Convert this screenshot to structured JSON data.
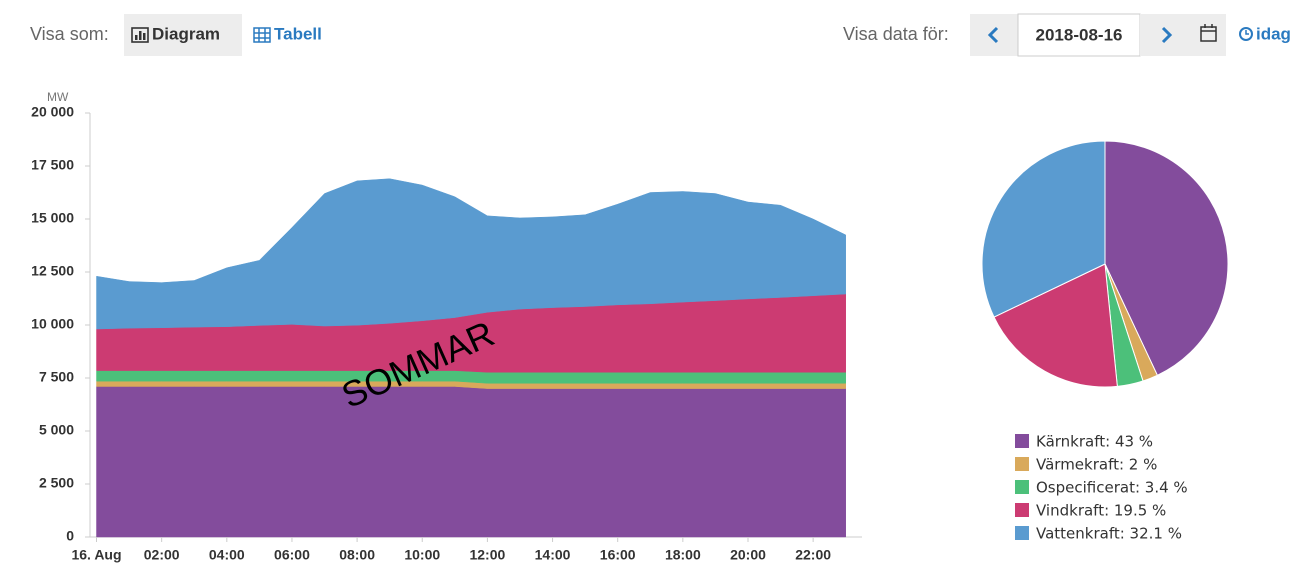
{
  "toolbar": {
    "show_as": "Visa som:",
    "diagram": "Diagram",
    "table": "Tabell",
    "show_data_for": "Visa data för:",
    "date": "2018-08-16",
    "today": "idag"
  },
  "chart_data": [
    {
      "type": "area",
      "stacked": true,
      "unit": "MW",
      "annotation": "SOMMAR",
      "x": [
        0,
        1,
        2,
        3,
        4,
        5,
        6,
        7,
        8,
        9,
        10,
        11,
        12,
        13,
        14,
        15,
        16,
        17,
        18,
        19,
        20,
        21,
        22,
        23
      ],
      "xlim": [
        -0.2,
        23.5
      ],
      "xticks": [
        {
          "value": 0,
          "label": "16. Aug"
        },
        {
          "value": 2,
          "label": "02:00"
        },
        {
          "value": 4,
          "label": "04:00"
        },
        {
          "value": 6,
          "label": "06:00"
        },
        {
          "value": 8,
          "label": "08:00"
        },
        {
          "value": 10,
          "label": "10:00"
        },
        {
          "value": 12,
          "label": "12:00"
        },
        {
          "value": 14,
          "label": "14:00"
        },
        {
          "value": 16,
          "label": "16:00"
        },
        {
          "value": 18,
          "label": "18:00"
        },
        {
          "value": 20,
          "label": "20:00"
        },
        {
          "value": 22,
          "label": "22:00"
        }
      ],
      "ylim": [
        0,
        20000
      ],
      "yticks": [
        0,
        {
          "value": 2500,
          "label": "2 500"
        },
        {
          "value": 5000,
          "label": "5 000"
        },
        {
          "value": 7500,
          "label": "7 500"
        },
        {
          "value": 10000,
          "label": "10 000"
        },
        {
          "value": 12500,
          "label": "12 500"
        },
        {
          "value": 15000,
          "label": "15 000"
        },
        {
          "value": 17500,
          "label": "17 500"
        },
        {
          "value": 20000,
          "label": "20 000"
        }
      ],
      "grid": false,
      "series": [
        {
          "name": "Kärnkraft",
          "color": "#834c9c",
          "values": [
            7100,
            7100,
            7100,
            7100,
            7100,
            7100,
            7100,
            7100,
            7100,
            7100,
            7100,
            7100,
            7000,
            7000,
            7000,
            7000,
            7000,
            7000,
            7000,
            7000,
            7000,
            7000,
            7000,
            7000
          ]
        },
        {
          "name": "Värmekraft",
          "color": "#d9a95b",
          "values": [
            250,
            250,
            250,
            250,
            250,
            250,
            250,
            250,
            250,
            250,
            250,
            250,
            250,
            250,
            250,
            250,
            250,
            250,
            250,
            250,
            250,
            250,
            250,
            250
          ]
        },
        {
          "name": "Ospecificerat",
          "color": "#4cc07a",
          "values": [
            500,
            500,
            500,
            500,
            500,
            500,
            500,
            500,
            500,
            500,
            500,
            500,
            520,
            520,
            520,
            520,
            520,
            520,
            520,
            520,
            520,
            520,
            520,
            520
          ]
        },
        {
          "name": "Vindkraft",
          "color": "#cc3b72",
          "values": [
            1960,
            2000,
            2020,
            2050,
            2070,
            2130,
            2180,
            2100,
            2140,
            2230,
            2350,
            2500,
            2830,
            2980,
            3050,
            3100,
            3180,
            3230,
            3310,
            3380,
            3460,
            3530,
            3610,
            3690
          ]
        },
        {
          "name": "Vattenkraft",
          "color": "#5a9bd0",
          "values": [
            2490,
            2200,
            2130,
            2200,
            2780,
            3070,
            4570,
            6250,
            6810,
            6820,
            6400,
            5700,
            4550,
            4300,
            4280,
            4330,
            4750,
            5250,
            5220,
            5050,
            4570,
            4350,
            3620,
            2790
          ]
        }
      ]
    },
    {
      "type": "pie",
      "labels": [
        "Kärnkraft: 43 %",
        "Värmekraft: 2 %",
        "Ospecificerat: 3.4 %",
        "Vindkraft: 19.5 %",
        "Vattenkraft: 32.1 %"
      ],
      "values": [
        43,
        2,
        3.4,
        19.5,
        32.1
      ],
      "colors": [
        "#834c9c",
        "#d9a95b",
        "#4cc07a",
        "#cc3b72",
        "#5a9bd0"
      ],
      "legend": "bottom"
    }
  ]
}
